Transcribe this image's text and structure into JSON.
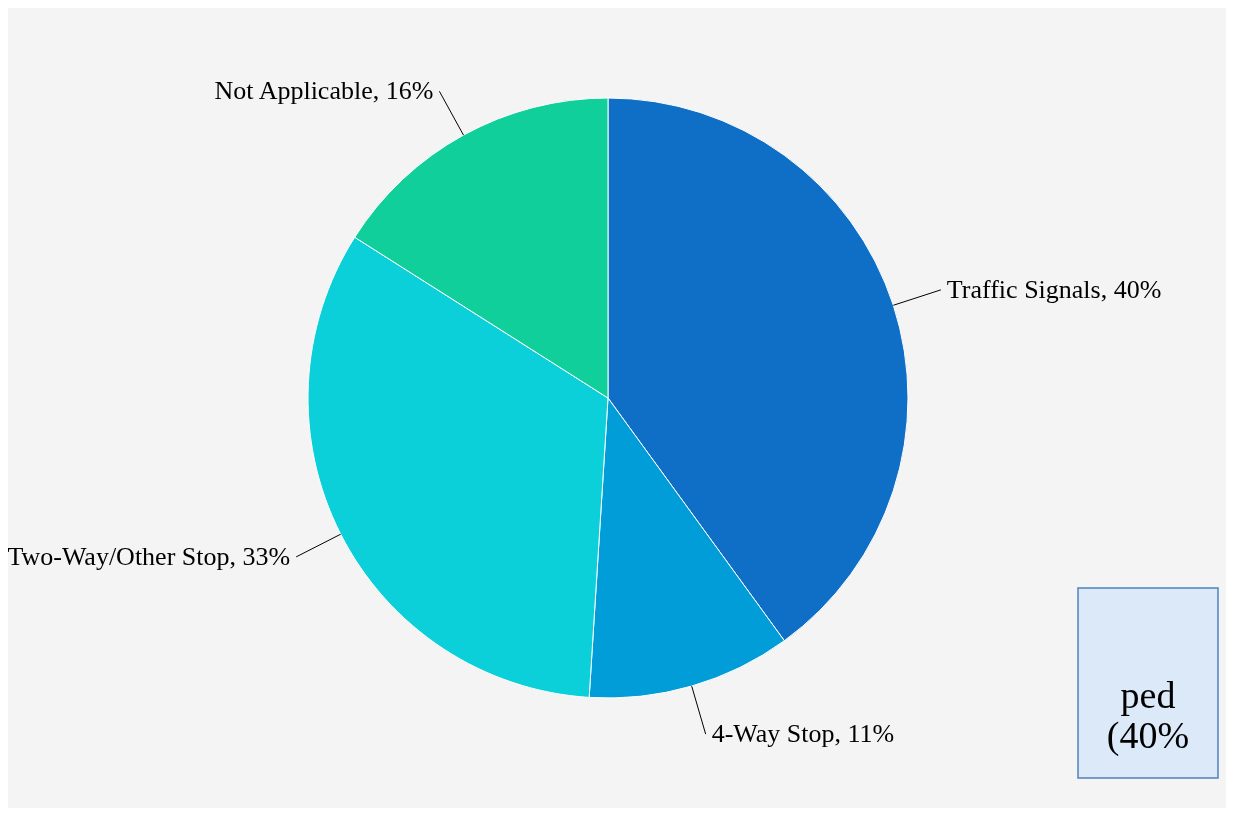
{
  "chart_data": {
    "type": "pie",
    "categories": [
      "Traffic Signals",
      "4-Way Stop",
      "Two-Way/Other Stop",
      "Not Applicable"
    ],
    "values": [
      40,
      11,
      33,
      16
    ],
    "value_labels": [
      "40%",
      "11%",
      "33%",
      "16%"
    ],
    "colors": [
      "#0f6fc6",
      "#009dd9",
      "#0bd0d9",
      "#10cf9b"
    ],
    "annotations": [
      "ped",
      "(40%"
    ]
  }
}
